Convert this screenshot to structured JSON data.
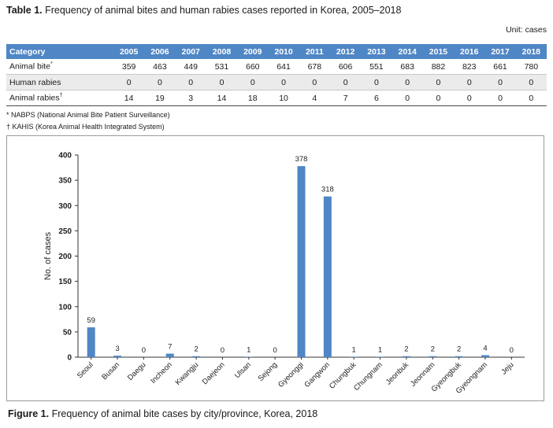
{
  "table": {
    "title_label": "Table 1.",
    "title_text": " Frequency of animal bites and human rabies cases reported in Korea, 2005–2018",
    "unit": "Unit: cases",
    "header": [
      "Category",
      "2005",
      "2006",
      "2007",
      "2008",
      "2009",
      "2010",
      "2011",
      "2012",
      "2013",
      "2014",
      "2015",
      "2016",
      "2017",
      "2018"
    ],
    "rows": [
      {
        "label": "Animal bite",
        "mark": "*",
        "values": [
          "359",
          "463",
          "449",
          "531",
          "660",
          "641",
          "678",
          "606",
          "551",
          "683",
          "882",
          "823",
          "661",
          "780"
        ]
      },
      {
        "label": "Human rabies",
        "mark": "",
        "values": [
          "0",
          "0",
          "0",
          "0",
          "0",
          "0",
          "0",
          "0",
          "0",
          "0",
          "0",
          "0",
          "0",
          "0"
        ]
      },
      {
        "label": "Animal rabies",
        "mark": "†",
        "values": [
          "14",
          "19",
          "3",
          "14",
          "18",
          "10",
          "4",
          "7",
          "6",
          "0",
          "0",
          "0",
          "0",
          "0"
        ]
      }
    ],
    "notes": [
      "* NABPS (National Animal Bite Patient Surveillance)",
      "† KAHIS (Korea Animal Health Integrated System)"
    ]
  },
  "figure": {
    "caption_label": "Figure 1.",
    "caption_text": " Frequency of animal bite cases by city/province, Korea, 2018"
  },
  "chart_data": {
    "type": "bar",
    "categories": [
      "Seoul",
      "Busan",
      "Daegu",
      "Incheon",
      "Kwangju",
      "Daejeon",
      "Ulsan",
      "Sejong",
      "Gyeonggi",
      "Gangwon",
      "Chungbuk",
      "Chungnam",
      "Jeonbuk",
      "Jeonnam",
      "Gyeongbuk",
      "Gyeongnam",
      "Jeju"
    ],
    "values": [
      59,
      3,
      0,
      7,
      2,
      0,
      1,
      0,
      378,
      318,
      1,
      1,
      2,
      2,
      2,
      4,
      0
    ],
    "ylabel": "No. of cases",
    "ylim": [
      0,
      400
    ],
    "yticks": [
      0,
      50,
      100,
      150,
      200,
      250,
      300,
      350,
      400
    ],
    "bar_color": "#4f86c6",
    "grid": false,
    "data_labels": true
  }
}
